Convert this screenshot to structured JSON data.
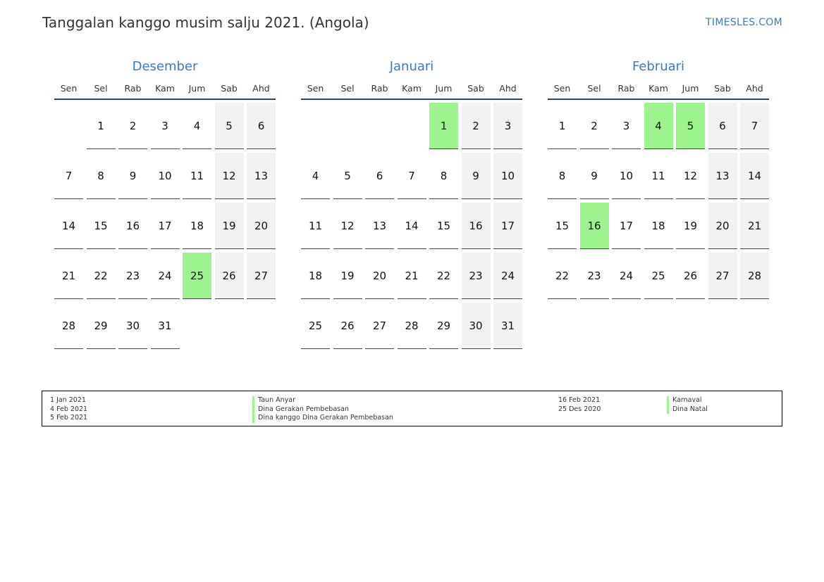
{
  "title": "Tanggalan kanggo musim salju 2021. (Angola)",
  "brand": "TIMESLES.COM",
  "weekdays": [
    "Sen",
    "Sel",
    "Rab",
    "Kam",
    "Jum",
    "Sab",
    "Ahd"
  ],
  "colors": {
    "accent": "#3b7cb8",
    "holiday": "#9cf58c",
    "weekend": "#f2f2f2"
  },
  "months": [
    {
      "name": "Desember",
      "offset": 1,
      "days": 31,
      "holidays": [
        25
      ]
    },
    {
      "name": "Januari",
      "offset": 4,
      "days": 31,
      "holidays": [
        1
      ]
    },
    {
      "name": "Februari",
      "offset": 0,
      "days": 28,
      "holidays": [
        4,
        5,
        16
      ]
    }
  ],
  "legend": {
    "left": [
      {
        "date": "1 Jan 2021",
        "name": "Taun Anyar"
      },
      {
        "date": "4 Feb 2021",
        "name": "Dina Gerakan Pembebasan"
      },
      {
        "date": "5 Feb 2021",
        "name": "Dina kanggo Dina Gerakan Pembebasan"
      }
    ],
    "right": [
      {
        "date": "16 Feb 2021",
        "name": "Karnaval"
      },
      {
        "date": "25 Des 2020",
        "name": "Dina Natal"
      }
    ]
  }
}
